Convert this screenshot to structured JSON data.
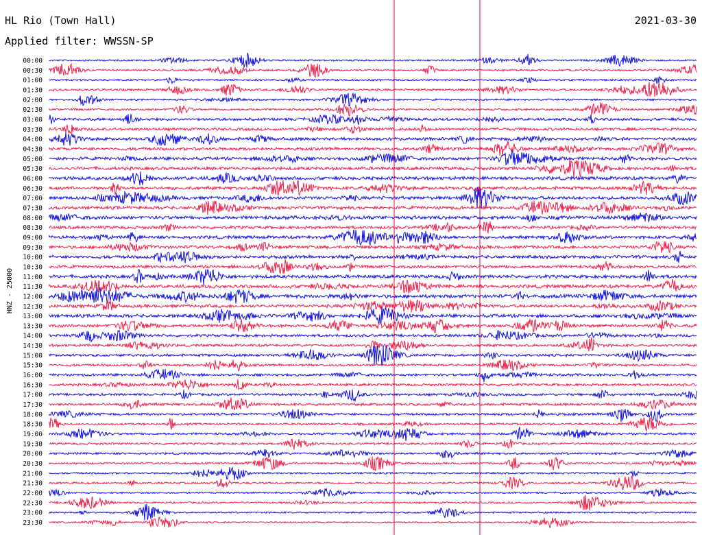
{
  "chart_data": {
    "type": "line",
    "title": "HL Rio (Town Hall)",
    "subtitle": "Applied filter: WWSSN-SP",
    "date": "2021-03-30",
    "ylabel": "HNZ - 25000",
    "rows": [
      "00:00",
      "00:30",
      "01:00",
      "01:30",
      "02:00",
      "02:30",
      "03:00",
      "03:30",
      "04:00",
      "04:30",
      "05:00",
      "05:30",
      "06:00",
      "06:30",
      "07:00",
      "07:30",
      "08:00",
      "08:30",
      "09:00",
      "09:30",
      "10:00",
      "10:30",
      "11:00",
      "11:30",
      "12:00",
      "12:30",
      "13:00",
      "13:30",
      "14:00",
      "14:30",
      "15:00",
      "15:30",
      "16:00",
      "16:30",
      "17:00",
      "17:30",
      "18:00",
      "18:30",
      "19:00",
      "19:30",
      "20:00",
      "20:30",
      "21:00",
      "21:30",
      "22:00",
      "22:30",
      "23:00",
      "23:30"
    ],
    "series_colors": [
      "#1010e0",
      "#f0204a"
    ],
    "marker_color": "#e8003a",
    "vertical_markers_note": "two vertical red reference lines cross the full record",
    "row_amplitude": [
      0.25,
      0.35,
      0.3,
      0.45,
      0.3,
      0.4,
      0.6,
      0.65,
      0.7,
      0.7,
      0.75,
      0.8,
      0.8,
      0.75,
      0.8,
      0.8,
      0.85,
      0.7,
      0.75,
      0.8,
      0.75,
      0.7,
      0.8,
      0.85,
      0.9,
      0.8,
      0.8,
      0.75,
      0.6,
      0.55,
      0.55,
      0.5,
      0.55,
      0.55,
      0.5,
      0.55,
      0.5,
      0.45,
      0.45,
      0.4,
      0.4,
      0.35,
      0.3,
      0.35,
      0.25,
      0.3,
      0.25,
      0.2
    ]
  }
}
